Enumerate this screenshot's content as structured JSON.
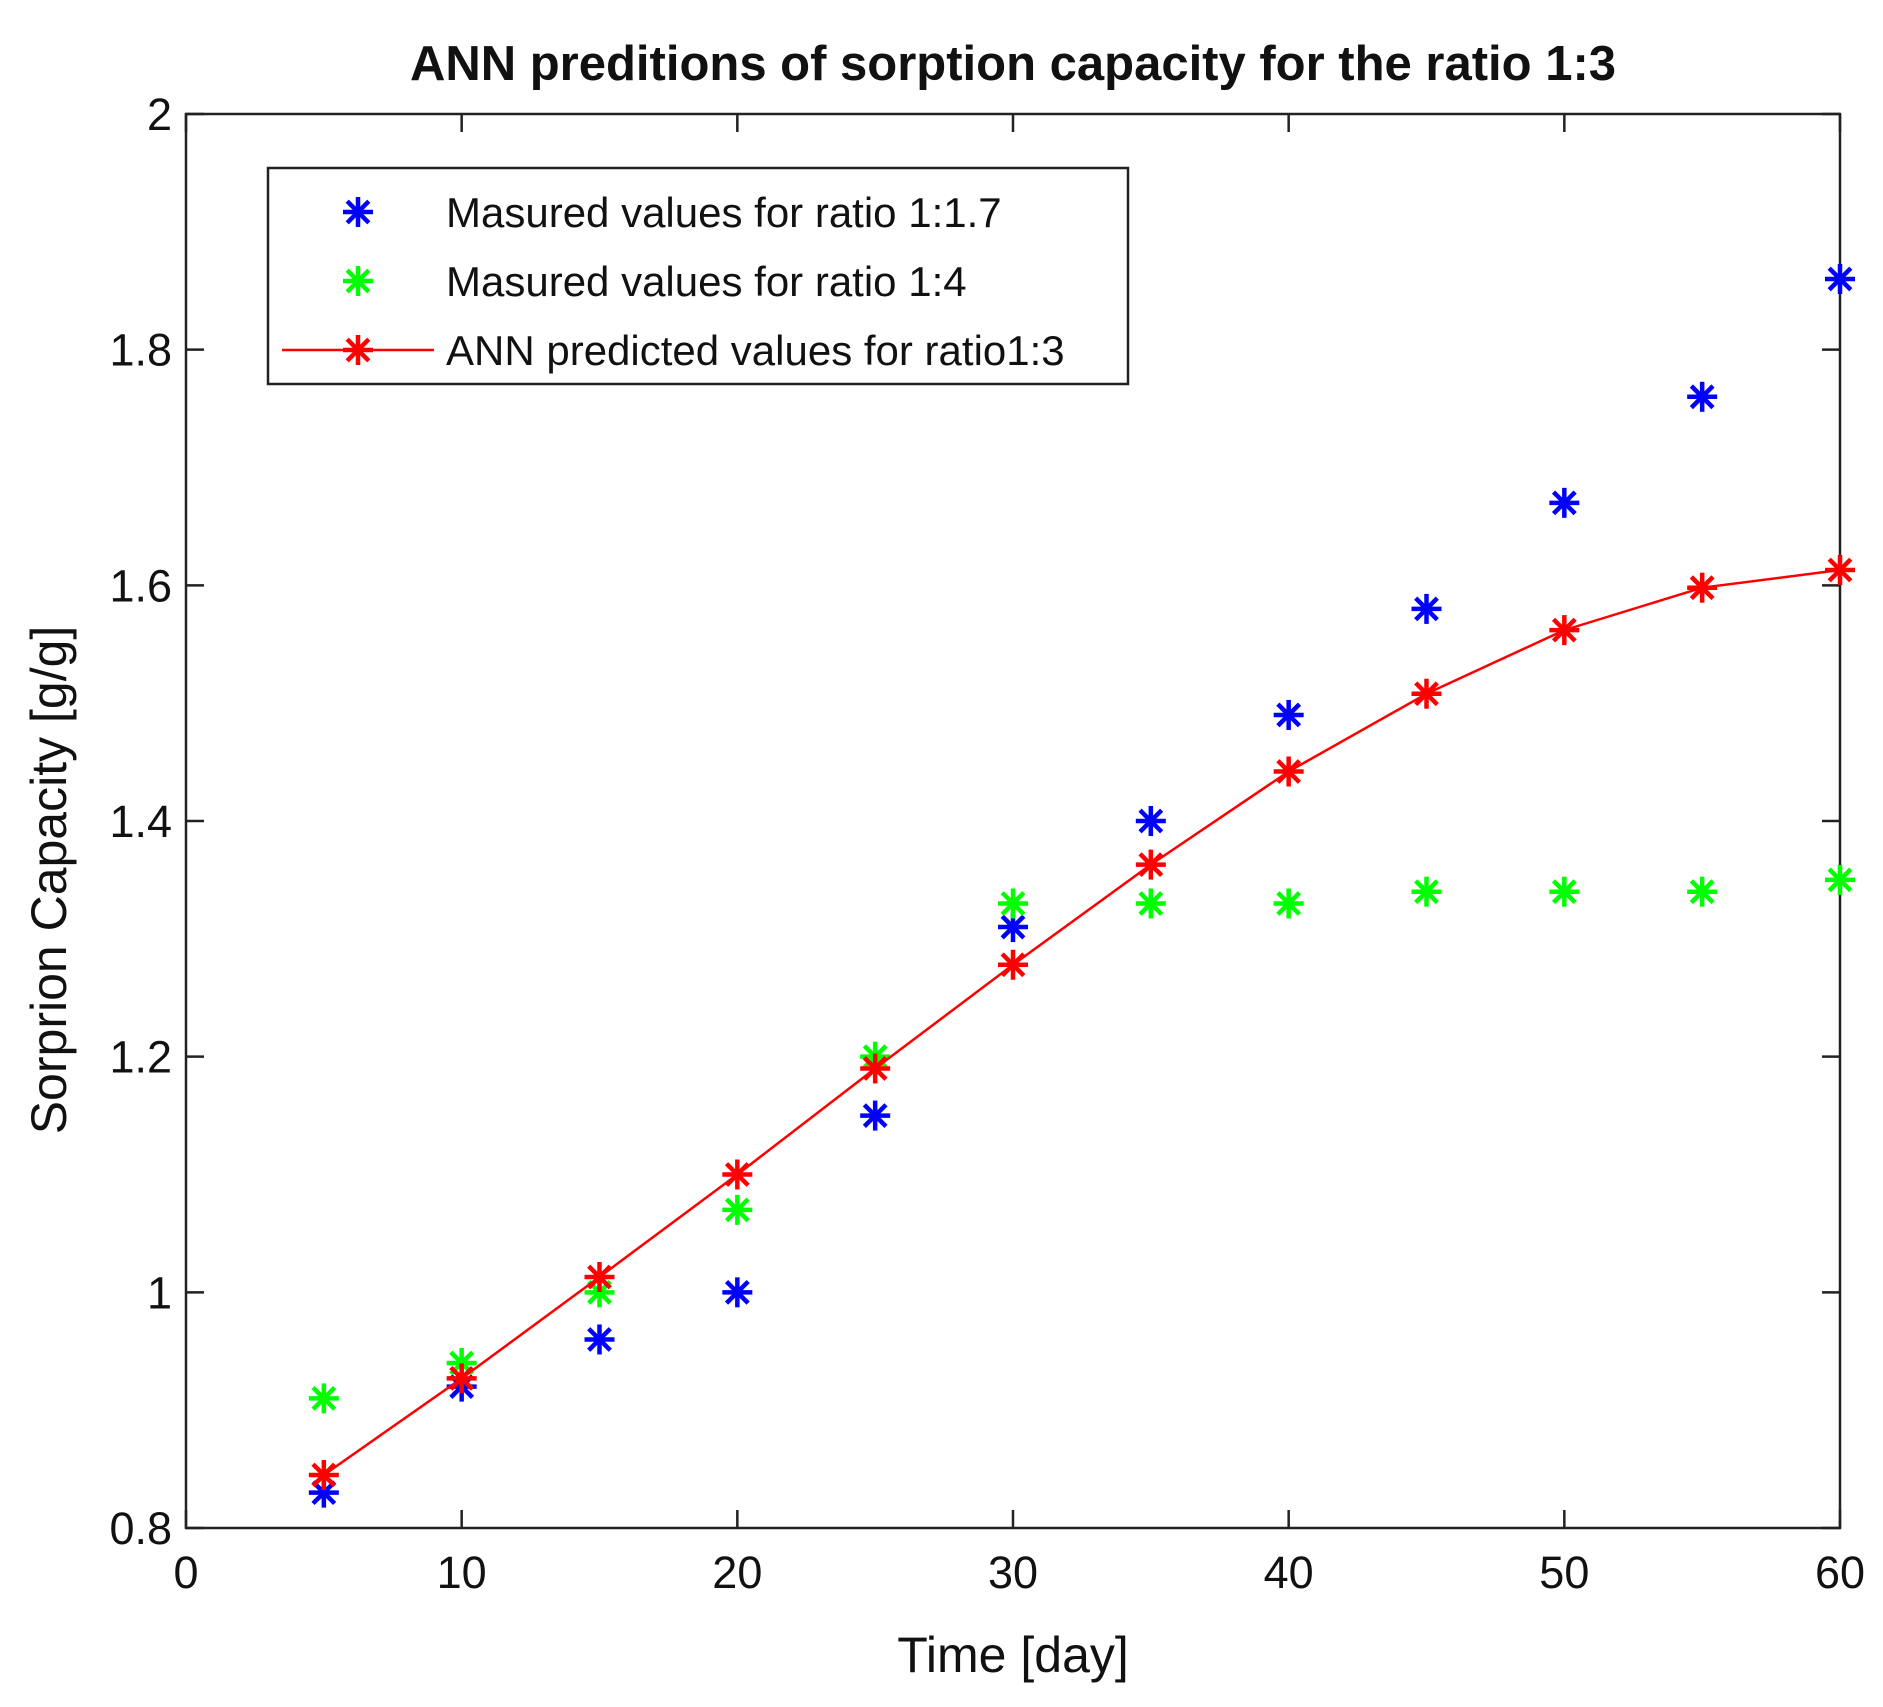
{
  "chart_data": {
    "type": "line",
    "title": "ANN preditions of sorption capacity for the ratio 1:3",
    "xlabel": "Time [day]",
    "ylabel": "Sorprion Capacity [g/g]",
    "xlim": [
      0,
      60
    ],
    "ylim": [
      0.8,
      2
    ],
    "xticks": [
      0,
      10,
      20,
      30,
      40,
      50,
      60
    ],
    "yticks": [
      0.8,
      1,
      1.2,
      1.4,
      1.6,
      1.8,
      2
    ],
    "xtick_labels": [
      "0",
      "10",
      "20",
      "30",
      "40",
      "50",
      "60"
    ],
    "ytick_labels": [
      "0.8",
      "1",
      "1.2",
      "1.4",
      "1.6",
      "1.8",
      "2"
    ],
    "grid": false,
    "legend_position": "top-left",
    "x": [
      5,
      10,
      15,
      20,
      25,
      30,
      35,
      40,
      45,
      50,
      55,
      60
    ],
    "series": [
      {
        "name": "Masured values for ratio 1:1.7",
        "color": "#0000ff",
        "marker": "asterisk",
        "line": false,
        "values": [
          0.83,
          0.92,
          0.96,
          1.0,
          1.15,
          1.31,
          1.4,
          1.49,
          1.58,
          1.67,
          1.76,
          1.86
        ]
      },
      {
        "name": "Masured values for ratio 1:4",
        "color": "#00ff00",
        "marker": "asterisk",
        "line": false,
        "values": [
          0.91,
          0.94,
          1.0,
          1.07,
          1.2,
          1.33,
          1.33,
          1.33,
          1.34,
          1.34,
          1.34,
          1.35
        ]
      },
      {
        "name": "ANN predicted values for ratio1:3",
        "color": "#ff0000",
        "marker": "asterisk",
        "line": true,
        "values": [
          0.845,
          0.927,
          1.013,
          1.1,
          1.19,
          1.278,
          1.363,
          1.442,
          1.508,
          1.562,
          1.598,
          1.613
        ]
      }
    ]
  }
}
